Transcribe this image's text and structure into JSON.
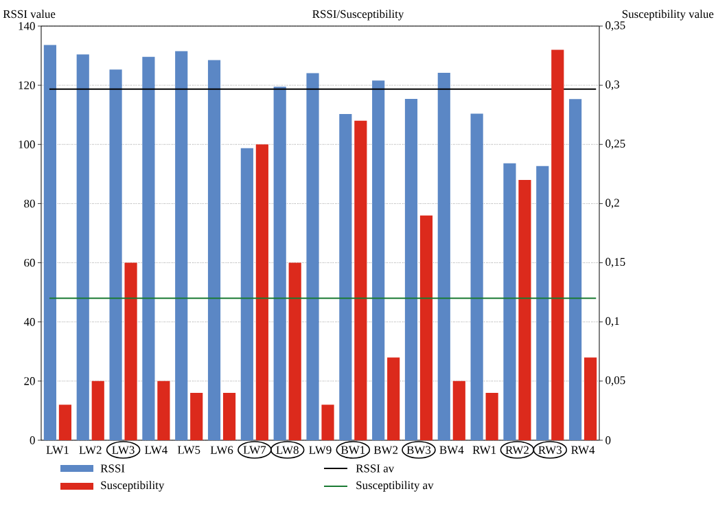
{
  "chart_data": {
    "type": "bar",
    "title": "RSSI/Susceptibility",
    "ylabel": "RSSI value",
    "y2label": "Susceptibility value",
    "categories": [
      "LW1",
      "LW2",
      "LW3",
      "LW4",
      "LW5",
      "LW6",
      "LW7",
      "LW8",
      "LW9",
      "BW1",
      "BW2",
      "BW3",
      "BW4",
      "RW1",
      "RW2",
      "RW3",
      "RW4"
    ],
    "series": [
      {
        "name": "RSSI",
        "color": "#5b87c5",
        "values": [
          133.6,
          130.4,
          125.3,
          129.6,
          131.5,
          128.5,
          98.7,
          119.5,
          124.1,
          110.3,
          121.6,
          115.4,
          124.2,
          110.4,
          93.6,
          92.7,
          115.3
        ]
      },
      {
        "name": "Susceptibility",
        "color": "#dc2a1c",
        "axis": "y2",
        "values": [
          0.03,
          0.05,
          0.15,
          0.05,
          0.04,
          0.04,
          0.25,
          0.15,
          0.03,
          0.27,
          0.07,
          0.19,
          0.05,
          0.04,
          0.22,
          0.33,
          0.07
        ]
      }
    ],
    "ylim": [
      0,
      140
    ],
    "yticks": [
      0,
      20,
      40,
      60,
      80,
      100,
      120,
      140
    ],
    "y2lim": [
      0,
      0.35
    ],
    "y2ticks": [
      0,
      {
        "value": 0.05,
        "label": "0,05"
      },
      {
        "value": 0.1,
        "label": "0,1"
      },
      {
        "value": 0.15,
        "label": "0,15"
      },
      {
        "value": 0.2,
        "label": "0,2"
      },
      {
        "value": 0.25,
        "label": "0,25"
      },
      {
        "value": 0.3,
        "label": "0,3"
      },
      {
        "value": 0.35,
        "label": "0,35"
      }
    ],
    "ref_lines": [
      {
        "axis": "y",
        "value": 118.7,
        "label": "RSSI av",
        "color": "#000000"
      },
      {
        "axis": "y2",
        "value": 0.12,
        "label": "Susceptibility av",
        "color": "#1a7a32"
      }
    ],
    "grid": "y",
    "legend": "bottom"
  }
}
